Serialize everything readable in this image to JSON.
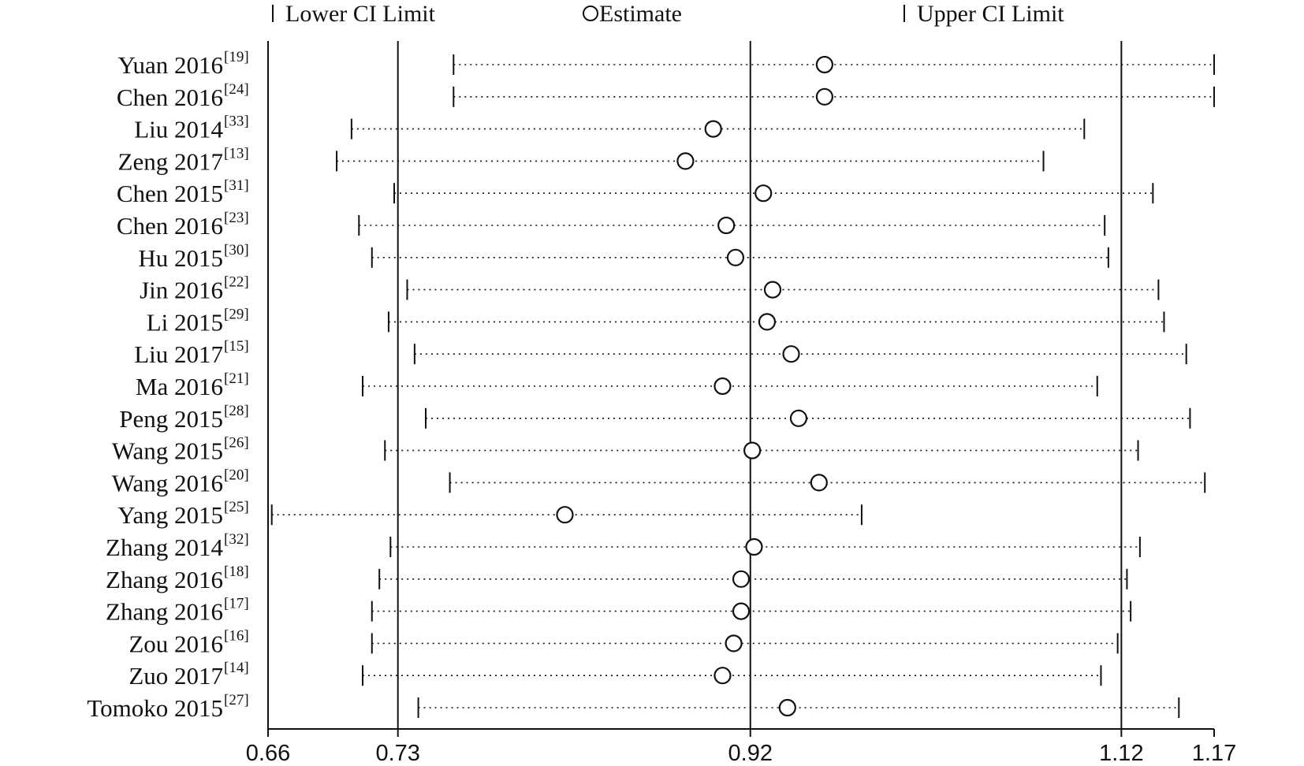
{
  "chart_data": {
    "type": "scatter",
    "title": "",
    "xlabel": "",
    "ylabel": "",
    "xlim": [
      0.66,
      1.17
    ],
    "xticks": [
      0.66,
      0.73,
      0.92,
      1.12,
      1.17
    ],
    "tick_labels": [
      "0.66",
      "0.73",
      "0.92",
      "1.12",
      "1.17"
    ],
    "reference_lines": [
      0.73,
      0.92,
      1.12
    ],
    "grid": false,
    "legend": {
      "placement": "top",
      "items": [
        {
          "marker": "bar",
          "label": "Lower CI Limit"
        },
        {
          "marker": "circle",
          "label": "Estimate"
        },
        {
          "marker": "bar",
          "label": "Upper CI Limit"
        }
      ]
    },
    "studies": [
      {
        "name": "Yuan 2016",
        "ref": "[19]",
        "lower": 0.76,
        "estimate": 0.96,
        "upper": 1.17
      },
      {
        "name": "Chen 2016",
        "ref": "[24]",
        "lower": 0.76,
        "estimate": 0.96,
        "upper": 1.17
      },
      {
        "name": "Liu 2014",
        "ref": "[33]",
        "lower": 0.705,
        "estimate": 0.9,
        "upper": 1.1
      },
      {
        "name": "Zeng 2017",
        "ref": "[13]",
        "lower": 0.697,
        "estimate": 0.885,
        "upper": 1.078
      },
      {
        "name": "Chen 2015",
        "ref": "[31]",
        "lower": 0.728,
        "estimate": 0.927,
        "upper": 1.137
      },
      {
        "name": "Chen 2016",
        "ref": "[23]",
        "lower": 0.709,
        "estimate": 0.907,
        "upper": 1.111
      },
      {
        "name": "Hu 2015",
        "ref": "[30]",
        "lower": 0.716,
        "estimate": 0.912,
        "upper": 1.113
      },
      {
        "name": "Jin 2016",
        "ref": "[22]",
        "lower": 0.735,
        "estimate": 0.932,
        "upper": 1.14
      },
      {
        "name": "Li 2015",
        "ref": "[29]",
        "lower": 0.725,
        "estimate": 0.929,
        "upper": 1.143
      },
      {
        "name": "Liu 2017",
        "ref": "[15]",
        "lower": 0.739,
        "estimate": 0.942,
        "upper": 1.155
      },
      {
        "name": "Ma 2016",
        "ref": "[21]",
        "lower": 0.711,
        "estimate": 0.905,
        "upper": 1.107
      },
      {
        "name": "Peng 2015",
        "ref": "[28]",
        "lower": 0.745,
        "estimate": 0.946,
        "upper": 1.157
      },
      {
        "name": "Wang 2015",
        "ref": "[26]",
        "lower": 0.723,
        "estimate": 0.921,
        "upper": 1.129
      },
      {
        "name": "Wang 2016",
        "ref": "[20]",
        "lower": 0.758,
        "estimate": 0.957,
        "upper": 1.165
      },
      {
        "name": "Yang 2015",
        "ref": "[25]",
        "lower": 0.662,
        "estimate": 0.82,
        "upper": 0.98
      },
      {
        "name": "Zhang 2014",
        "ref": "[32]",
        "lower": 0.726,
        "estimate": 0.922,
        "upper": 1.13
      },
      {
        "name": "Zhang 2016",
        "ref": "[18]",
        "lower": 0.72,
        "estimate": 0.915,
        "upper": 1.123
      },
      {
        "name": "Zhang 2016",
        "ref": "[17]",
        "lower": 0.716,
        "estimate": 0.915,
        "upper": 1.125
      },
      {
        "name": "Zou 2016",
        "ref": "[16]",
        "lower": 0.716,
        "estimate": 0.911,
        "upper": 1.118
      },
      {
        "name": "Zuo 2017",
        "ref": "[14]",
        "lower": 0.711,
        "estimate": 0.905,
        "upper": 1.109
      },
      {
        "name": "Tomoko 2015",
        "ref": "[27]",
        "lower": 0.741,
        "estimate": 0.94,
        "upper": 1.151
      }
    ]
  },
  "colors": {
    "ink": "#111111",
    "background": "#ffffff",
    "marker_fill": "#ffffff"
  }
}
